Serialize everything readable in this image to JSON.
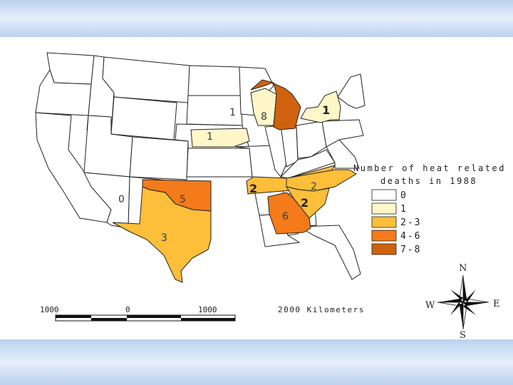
{
  "map": {
    "state_labels": {
      "wisconsin": "1",
      "michigan": "8",
      "new_york": "1",
      "iowa": "1",
      "nevada": "0",
      "oklahoma": "5",
      "texas": "3",
      "tennessee": "2",
      "north_carolina": "2",
      "south_carolina": "2",
      "georgia": "6"
    }
  },
  "legend": {
    "title_line1": "Number of heat related",
    "title_line2": "deaths in 1988",
    "items": [
      {
        "label": "0",
        "color": "#ffffff"
      },
      {
        "label": "1",
        "color": "#fff7c8"
      },
      {
        "label": "2-3",
        "color": "#fdbe3a"
      },
      {
        "label": "4-6",
        "color": "#f47a1a"
      },
      {
        "label": "7-8",
        "color": "#d0620f"
      }
    ]
  },
  "scale_bar": {
    "ticks": [
      "1000",
      "0",
      "1000",
      "2000 Kilometers"
    ]
  },
  "compass": {
    "n": "N",
    "s": "S",
    "e": "E",
    "w": "W"
  }
}
